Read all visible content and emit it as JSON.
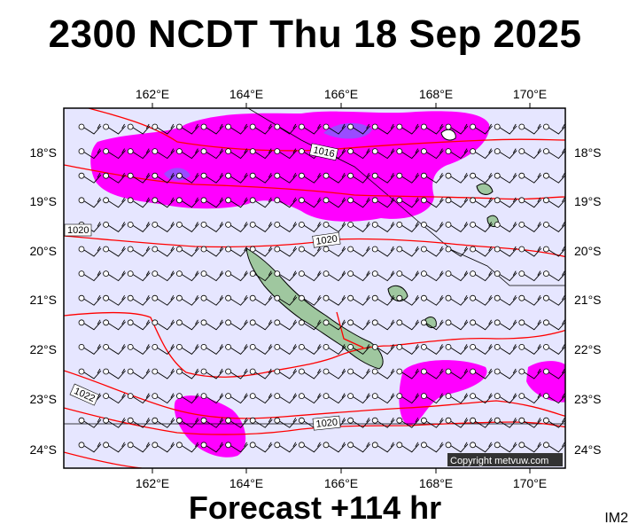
{
  "header": {
    "title": "2300 NCDT Thu 18 Sep 2025"
  },
  "footer": {
    "forecast": "Forecast +114 hr",
    "corner_label": "IM2"
  },
  "copyright": "Copyright metvuw.com",
  "map": {
    "lon_ticks": [
      "162°E",
      "164°E",
      "166°E",
      "168°E",
      "170°E"
    ],
    "lat_ticks": [
      "18°S",
      "19°S",
      "20°S",
      "21°S",
      "22°S",
      "23°S",
      "24°S"
    ],
    "isobar_labels": [
      "1016",
      "1020",
      "1020",
      "1022",
      "1020"
    ],
    "colors": {
      "ocean": "#e6e6ff",
      "rain_light": "#ff00ff",
      "rain_heavy": "#9a4cff",
      "isobar": "#ff0000",
      "land": "#9fc79f"
    }
  }
}
